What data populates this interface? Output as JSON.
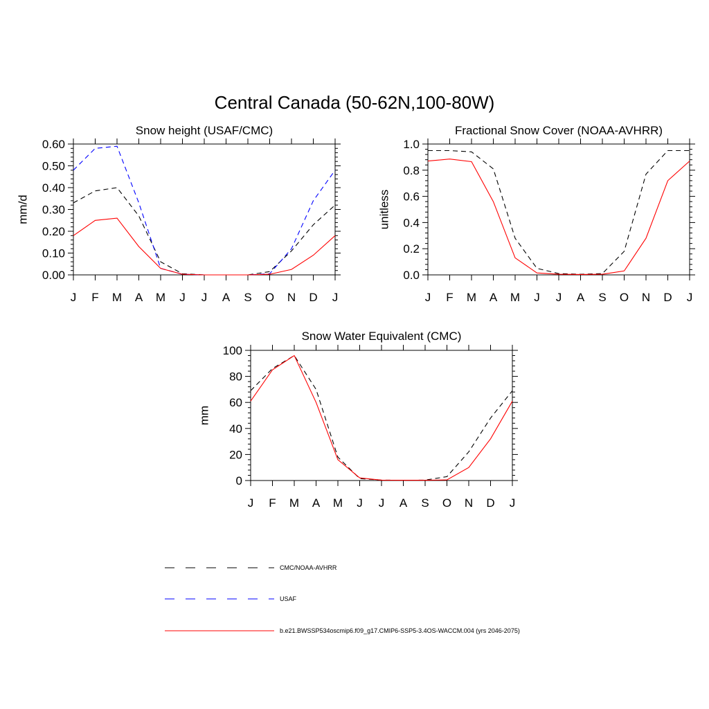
{
  "page_title": "Central Canada (50-62N,100-80W)",
  "months": [
    "J",
    "F",
    "M",
    "A",
    "M",
    "J",
    "J",
    "A",
    "S",
    "O",
    "N",
    "D",
    "J"
  ],
  "colors": {
    "obs": "#000000",
    "usaf": "#0000ff",
    "model": "#ff0000"
  },
  "legend": {
    "obs_label": "CMC/NOAA-AVHRR",
    "usaf_label": "USAF",
    "model_label": "b.e21.BWSSP534oscmip6.f09_g17.CMIP6-SSP5-3.4OS-WACCM.004 (yrs 2046-2075)"
  },
  "chart_data": [
    {
      "type": "line",
      "title": "Snow height (USAF/CMC)",
      "ylabel": "mm/d",
      "xlabel": "",
      "ylim": [
        0,
        0.6
      ],
      "yticks": [
        0,
        0.1,
        0.2,
        0.3,
        0.4,
        0.5,
        0.6
      ],
      "ytick_labels": [
        "0.00",
        "0.10",
        "0.20",
        "0.30",
        "0.40",
        "0.50",
        "0.60"
      ],
      "categories": [
        "J",
        "F",
        "M",
        "A",
        "M",
        "J",
        "J",
        "A",
        "S",
        "O",
        "N",
        "D",
        "J"
      ],
      "series": [
        {
          "name": "CMC/NOAA-AVHRR",
          "style": "dashed",
          "color": "#000000",
          "values": [
            0.33,
            0.385,
            0.4,
            0.27,
            0.06,
            0.005,
            0.0,
            0.0,
            0.0,
            0.015,
            0.11,
            0.23,
            0.32
          ]
        },
        {
          "name": "USAF",
          "style": "dashed",
          "color": "#0000ff",
          "values": [
            0.48,
            0.58,
            0.59,
            0.33,
            0.03,
            0.003,
            0.0,
            0.0,
            0.0,
            0.005,
            0.12,
            0.34,
            0.48
          ]
        },
        {
          "name": "b.e21.BWSSP534oscmip6.f09_g17.CMIP6-SSP5-3.4OS-WACCM.004 (yrs 2046-2075)",
          "style": "solid",
          "color": "#ff0000",
          "values": [
            0.18,
            0.25,
            0.26,
            0.13,
            0.03,
            0.003,
            0.0,
            0.0,
            0.0,
            0.003,
            0.025,
            0.09,
            0.18
          ]
        }
      ]
    },
    {
      "type": "line",
      "title": "Fractional Snow Cover (NOAA-AVHRR)",
      "ylabel": "unitless",
      "xlabel": "",
      "ylim": [
        0,
        1.0
      ],
      "yticks": [
        0,
        0.2,
        0.4,
        0.6,
        0.8,
        1.0
      ],
      "ytick_labels": [
        "0.0",
        "0.2",
        "0.4",
        "0.6",
        "0.8",
        "1.0"
      ],
      "categories": [
        "J",
        "F",
        "M",
        "A",
        "M",
        "J",
        "J",
        "A",
        "S",
        "O",
        "N",
        "D",
        "J"
      ],
      "series": [
        {
          "name": "CMC/NOAA-AVHRR",
          "style": "dashed",
          "color": "#000000",
          "values": [
            0.95,
            0.95,
            0.94,
            0.81,
            0.28,
            0.05,
            0.01,
            0.005,
            0.01,
            0.18,
            0.77,
            0.95,
            0.95
          ]
        },
        {
          "name": "b.e21.BWSSP534oscmip6.f09_g17.CMIP6-SSP5-3.4OS-WACCM.004 (yrs 2046-2075)",
          "style": "solid",
          "color": "#ff0000",
          "values": [
            0.87,
            0.885,
            0.865,
            0.56,
            0.13,
            0.015,
            0.005,
            0.003,
            0.005,
            0.03,
            0.28,
            0.72,
            0.87
          ]
        }
      ]
    },
    {
      "type": "line",
      "title": "Snow Water Equivalent (CMC)",
      "ylabel": "mm",
      "xlabel": "",
      "ylim": [
        0,
        100
      ],
      "yticks": [
        0,
        20,
        40,
        60,
        80,
        100
      ],
      "ytick_labels": [
        "0",
        "20",
        "40",
        "60",
        "80",
        "100"
      ],
      "categories": [
        "J",
        "F",
        "M",
        "A",
        "M",
        "J",
        "J",
        "A",
        "S",
        "O",
        "N",
        "D",
        "J"
      ],
      "series": [
        {
          "name": "CMC/NOAA-AVHRR",
          "style": "dashed",
          "color": "#000000",
          "values": [
            69,
            86,
            96,
            70,
            18,
            1.5,
            0.3,
            0.2,
            0.3,
            3,
            22,
            48,
            69
          ]
        },
        {
          "name": "b.e21.BWSSP534oscmip6.f09_g17.CMIP6-SSP5-3.4OS-WACCM.004 (yrs 2046-2075)",
          "style": "solid",
          "color": "#ff0000",
          "values": [
            61,
            85,
            96,
            60,
            16,
            2,
            0.3,
            0.2,
            0.2,
            0.5,
            10,
            32,
            61
          ]
        }
      ]
    }
  ]
}
